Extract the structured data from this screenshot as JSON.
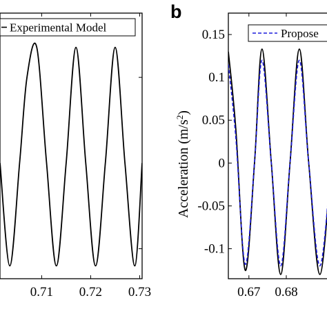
{
  "chart_data": [
    {
      "type": "line",
      "panel_label": "",
      "xlim": [
        0.7015,
        0.7305
      ],
      "ylim": [
        -0.135,
        0.175
      ],
      "x_ticks": [
        0.71,
        0.72,
        0.73
      ],
      "x_tick_labels": [
        "0.71",
        "0.72",
        "0.73"
      ],
      "y_ticks": [],
      "y_tick_labels": [],
      "xlabel": "",
      "ylabel": "",
      "legend": {
        "position": "top",
        "entries": [
          "Experimental Model"
        ]
      },
      "series": [
        {
          "name": "Experimental Model",
          "color": "#000000",
          "style": "solid",
          "x": [
            0.7015,
            0.7035,
            0.7055,
            0.707,
            0.709,
            0.711,
            0.713,
            0.715,
            0.717,
            0.719,
            0.721,
            0.723,
            0.725,
            0.727,
            0.729,
            0.7305
          ],
          "y": [
            0.0,
            -0.12,
            0.0,
            0.1,
            0.135,
            0.0,
            -0.12,
            0.0,
            0.135,
            0.0,
            -0.12,
            0.0,
            0.135,
            0.0,
            -0.12,
            0.0
          ]
        }
      ]
    },
    {
      "type": "line",
      "panel_label": "b",
      "xlim": [
        0.6645,
        0.692
      ],
      "ylim": [
        -0.135,
        0.175
      ],
      "x_ticks": [
        0.67,
        0.68
      ],
      "x_tick_labels": [
        "0.67",
        "0.68"
      ],
      "y_ticks": [
        0.15,
        0.1,
        0.05,
        0,
        -0.05,
        -0.1
      ],
      "y_tick_labels": [
        "0.15",
        "0.1",
        "0.05",
        "0",
        "-0.05",
        "-0.1"
      ],
      "xlabel": "",
      "ylabel": "Acceleration (m/s",
      "ylabel_sup": "2",
      "ylabel_tail": ")",
      "legend": {
        "position": "top",
        "entries": [
          "Propose"
        ]
      },
      "series": [
        {
          "name": "",
          "color": "#000000",
          "style": "solid",
          "x": [
            0.6645,
            0.6665,
            0.669,
            0.6715,
            0.6735,
            0.676,
            0.6785,
            0.681,
            0.6835,
            0.686,
            0.689,
            0.692
          ],
          "y": [
            0.13,
            0.04,
            -0.125,
            0.0,
            0.133,
            0.0,
            -0.13,
            0.0,
            0.133,
            0.0,
            -0.13,
            0.0
          ]
        },
        {
          "name": "Propose",
          "color": "#1a1adb",
          "style": "dashed",
          "x": [
            0.6645,
            0.6665,
            0.669,
            0.6715,
            0.6735,
            0.676,
            0.6785,
            0.681,
            0.6835,
            0.686,
            0.689,
            0.692
          ],
          "y": [
            0.115,
            0.03,
            -0.118,
            0.0,
            0.12,
            0.0,
            -0.12,
            0.0,
            0.12,
            0.0,
            -0.12,
            0.0
          ]
        }
      ]
    }
  ]
}
